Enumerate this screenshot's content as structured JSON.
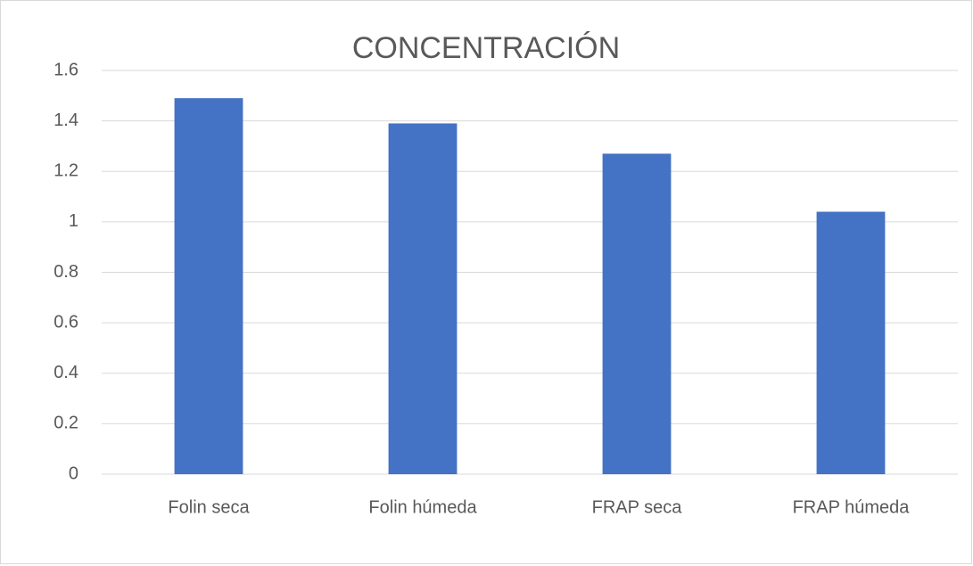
{
  "chart_data": {
    "type": "bar",
    "title": "CONCENTRACIÓN",
    "categories": [
      "Folin seca",
      "Folin húmeda",
      "FRAP seca",
      "FRAP húmeda"
    ],
    "values": [
      1.49,
      1.39,
      1.27,
      1.04
    ],
    "color": "#4472c4",
    "ylim": [
      0,
      1.6
    ],
    "yticks": [
      0,
      0.2,
      0.4,
      0.6,
      0.8,
      1,
      1.2,
      1.4,
      1.6
    ],
    "grid": true
  }
}
